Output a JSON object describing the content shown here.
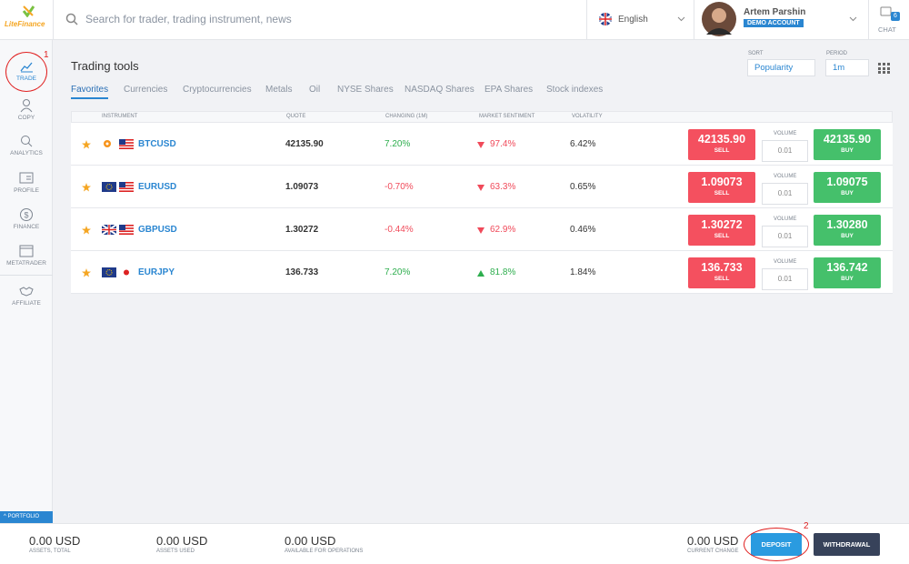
{
  "header": {
    "logo": "LiteFinance",
    "search_placeholder": "Search for trader, trading instrument, news",
    "language": "English",
    "user_name": "Artem Parshin",
    "account_badge": "DEMO ACCOUNT",
    "chat_count": "6",
    "chat_label": "CHAT"
  },
  "sidebar": {
    "items": [
      "TRADE",
      "COPY",
      "ANALYTICS",
      "PROFILE",
      "FINANCE",
      "METATRADER",
      "AFFILIATE"
    ],
    "portfolio": "PORTFOLIO"
  },
  "annotations": [
    "1",
    "2"
  ],
  "page": {
    "title": "Trading tools",
    "sort_label": "SORT",
    "sort_value": "Popularity",
    "period_label": "PERIOD",
    "period_value": "1m",
    "tabs": [
      "Favorites",
      "Currencies",
      "Cryptocurrencies",
      "Metals",
      "Oil",
      "NYSE Shares",
      "NASDAQ Shares",
      "EPA Shares",
      "Stock indexes"
    ]
  },
  "table": {
    "columns": [
      "INSTRUMENT",
      "QUOTE",
      "CHANGING (1M)",
      "MARKET SENTIMENT",
      "VOLATILITY"
    ],
    "sell_label": "SELL",
    "buy_label": "BUY",
    "volume_label": "VOLUME",
    "rows": [
      {
        "instrument": "BTCUSD",
        "quote": "42135.90",
        "change": "7.20%",
        "sentiment": "97.4%",
        "sentiment_dir": "down",
        "volatility": "6.42%",
        "sell": "42135.90",
        "volume": "0.01",
        "buy": "42135.90"
      },
      {
        "instrument": "EURUSD",
        "quote": "1.09073",
        "change": "-0.70%",
        "sentiment": "63.3%",
        "sentiment_dir": "down",
        "volatility": "0.65%",
        "sell": "1.09073",
        "volume": "0.01",
        "buy": "1.09075"
      },
      {
        "instrument": "GBPUSD",
        "quote": "1.30272",
        "change": "-0.44%",
        "sentiment": "62.9%",
        "sentiment_dir": "down",
        "volatility": "0.46%",
        "sell": "1.30272",
        "volume": "0.01",
        "buy": "1.30280"
      },
      {
        "instrument": "EURJPY",
        "quote": "136.733",
        "change": "7.20%",
        "sentiment": "81.8%",
        "sentiment_dir": "up",
        "volatility": "1.84%",
        "sell": "136.733",
        "volume": "0.01",
        "buy": "136.742"
      }
    ]
  },
  "footer": {
    "stats": [
      {
        "value": "0.00 USD",
        "label": "ASSETS, TOTAL"
      },
      {
        "value": "0.00 USD",
        "label": "ASSETS USED"
      },
      {
        "value": "0.00 USD",
        "label": "AVAILABLE FOR OPERATIONS"
      },
      {
        "value": "0.00 USD",
        "label": "CURRENT CHANGE"
      }
    ],
    "deposit": "DEPOSIT",
    "withdrawal": "WITHDRAWAL"
  }
}
